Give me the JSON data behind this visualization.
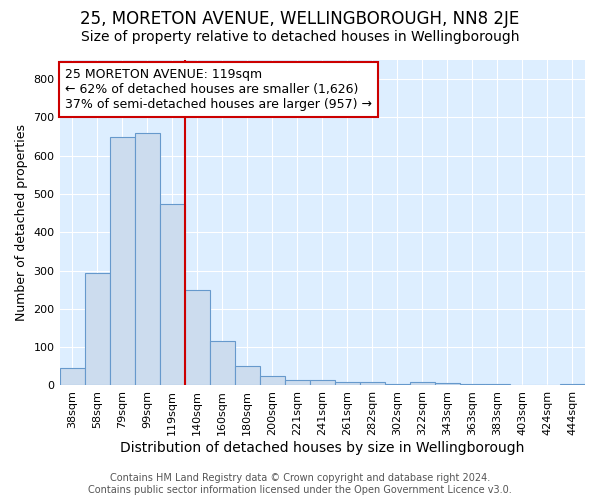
{
  "title": "25, MORETON AVENUE, WELLINGBOROUGH, NN8 2JE",
  "subtitle": "Size of property relative to detached houses in Wellingborough",
  "xlabel": "Distribution of detached houses by size in Wellingborough",
  "ylabel": "Number of detached properties",
  "categories": [
    "38sqm",
    "58sqm",
    "79sqm",
    "99sqm",
    "119sqm",
    "140sqm",
    "160sqm",
    "180sqm",
    "200sqm",
    "221sqm",
    "241sqm",
    "261sqm",
    "282sqm",
    "302sqm",
    "322sqm",
    "343sqm",
    "363sqm",
    "383sqm",
    "403sqm",
    "424sqm",
    "444sqm"
  ],
  "values": [
    45,
    295,
    650,
    660,
    475,
    250,
    115,
    50,
    25,
    15,
    13,
    10,
    8,
    5,
    10,
    7,
    5,
    3,
    2,
    2,
    5
  ],
  "bar_color": "#ccdcee",
  "bar_edge_color": "#6699cc",
  "marker_index": 4,
  "marker_color": "#cc0000",
  "ylim": [
    0,
    850
  ],
  "yticks": [
    0,
    100,
    200,
    300,
    400,
    500,
    600,
    700,
    800
  ],
  "annotation_title": "25 MORETON AVENUE: 119sqm",
  "annotation_line1": "← 62% of detached houses are smaller (1,626)",
  "annotation_line2": "37% of semi-detached houses are larger (957) →",
  "annotation_box_facecolor": "#ffffff",
  "annotation_box_edgecolor": "#cc0000",
  "footer_line1": "Contains HM Land Registry data © Crown copyright and database right 2024.",
  "footer_line2": "Contains public sector information licensed under the Open Government Licence v3.0.",
  "fig_bg_color": "#ffffff",
  "plot_bg_color": "#ddeeff",
  "grid_color": "#ffffff",
  "title_fontsize": 12,
  "subtitle_fontsize": 10,
  "xlabel_fontsize": 10,
  "ylabel_fontsize": 9,
  "tick_fontsize": 8,
  "annotation_fontsize": 9,
  "footer_fontsize": 7
}
